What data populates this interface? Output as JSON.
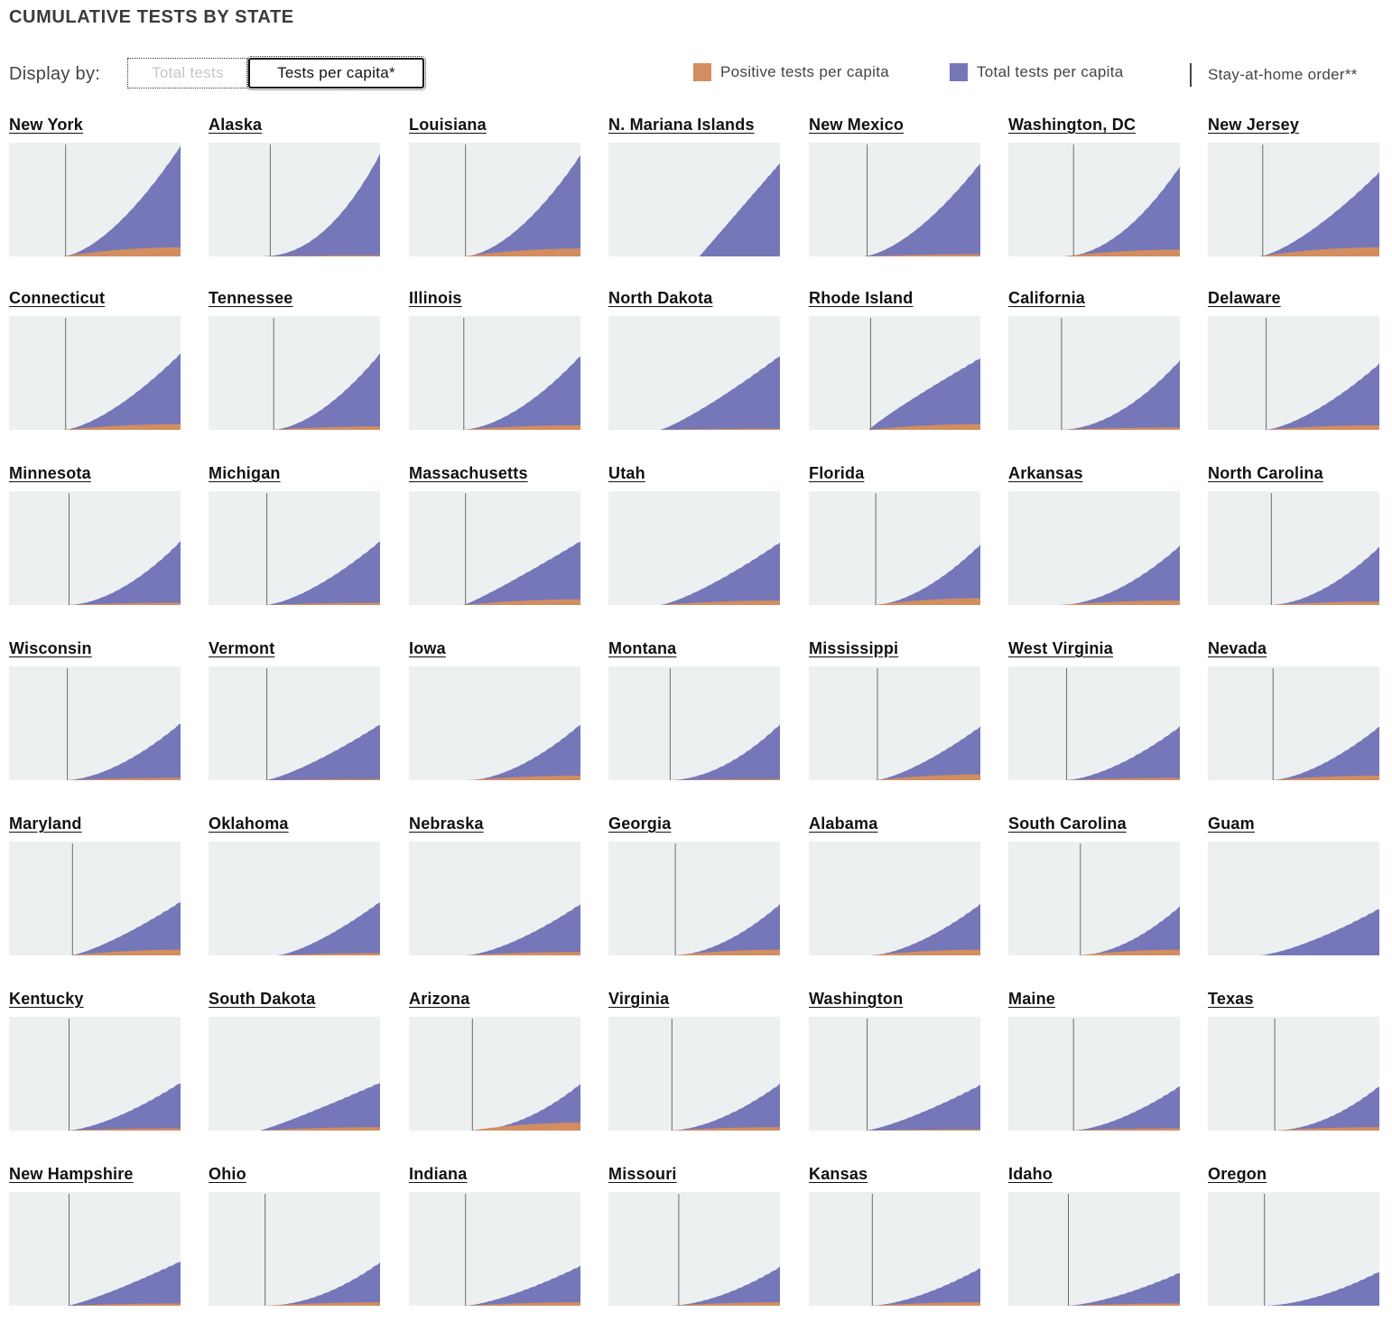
{
  "title": "CUMULATIVE TESTS BY STATE",
  "display": {
    "label": "Display by:",
    "options": [
      "Total tests",
      "Tests per capita*"
    ],
    "selected": "Tests per capita*"
  },
  "legend": {
    "positive": "Positive tests per capita",
    "total": "Total tests per capita",
    "order": "Stay-at-home order**"
  },
  "colors": {
    "positive": "#d38d5f",
    "total": "#7577b8",
    "background": "#edf0f1",
    "order_line": "#6b6b6b"
  },
  "chart_data": {
    "type": "area",
    "layout": "small-multiples",
    "columns": 7,
    "series_names": [
      "Positive tests per capita",
      "Total tests per capita"
    ],
    "states": [
      {
        "name": "New York",
        "order": 0.33,
        "start": 0.31,
        "total_end": 0.97,
        "pos_end": 0.08,
        "curve": 1.6
      },
      {
        "name": "Alaska",
        "order": 0.36,
        "start": 0.3,
        "total_end": 0.9,
        "pos_end": 0.01,
        "curve": 2.2
      },
      {
        "name": "Louisiana",
        "order": 0.33,
        "start": 0.32,
        "total_end": 0.89,
        "pos_end": 0.07,
        "curve": 1.7
      },
      {
        "name": "N. Mariana Islands",
        "order": null,
        "start": 0.53,
        "total_end": 0.82,
        "pos_end": 0.0,
        "curve": 1.0
      },
      {
        "name": "New Mexico",
        "order": 0.34,
        "start": 0.31,
        "total_end": 0.82,
        "pos_end": 0.02,
        "curve": 1.6
      },
      {
        "name": "Washington, DC",
        "order": 0.38,
        "start": 0.32,
        "total_end": 0.79,
        "pos_end": 0.06,
        "curve": 1.9
      },
      {
        "name": "New Jersey",
        "order": 0.32,
        "start": 0.3,
        "total_end": 0.74,
        "pos_end": 0.08,
        "curve": 1.4
      },
      {
        "name": "Connecticut",
        "order": 0.33,
        "start": 0.32,
        "total_end": 0.67,
        "pos_end": 0.05,
        "curve": 1.5
      },
      {
        "name": "Tennessee",
        "order": 0.38,
        "start": 0.37,
        "total_end": 0.67,
        "pos_end": 0.03,
        "curve": 1.7
      },
      {
        "name": "Illinois",
        "order": 0.32,
        "start": 0.31,
        "total_end": 0.65,
        "pos_end": 0.04,
        "curve": 1.7
      },
      {
        "name": "North Dakota",
        "order": null,
        "start": 0.3,
        "total_end": 0.65,
        "pos_end": 0.01,
        "curve": 1.2
      },
      {
        "name": "Rhode Island",
        "order": 0.36,
        "start": 0.35,
        "total_end": 0.63,
        "pos_end": 0.05,
        "curve": 0.9
      },
      {
        "name": "California",
        "order": 0.31,
        "start": 0.3,
        "total_end": 0.61,
        "pos_end": 0.02,
        "curve": 1.9
      },
      {
        "name": "Delaware",
        "order": 0.34,
        "start": 0.33,
        "total_end": 0.58,
        "pos_end": 0.04,
        "curve": 1.5
      },
      {
        "name": "Minnesota",
        "order": 0.35,
        "start": 0.34,
        "total_end": 0.56,
        "pos_end": 0.02,
        "curve": 1.8
      },
      {
        "name": "Michigan",
        "order": 0.34,
        "start": 0.33,
        "total_end": 0.56,
        "pos_end": 0.02,
        "curve": 1.5
      },
      {
        "name": "Massachusetts",
        "order": 0.33,
        "start": 0.32,
        "total_end": 0.56,
        "pos_end": 0.05,
        "curve": 1.1
      },
      {
        "name": "Utah",
        "order": null,
        "start": 0.3,
        "total_end": 0.55,
        "pos_end": 0.04,
        "curve": 1.3
      },
      {
        "name": "Florida",
        "order": 0.39,
        "start": 0.38,
        "total_end": 0.53,
        "pos_end": 0.06,
        "curve": 1.7
      },
      {
        "name": "Arkansas",
        "order": null,
        "start": 0.3,
        "total_end": 0.52,
        "pos_end": 0.04,
        "curve": 1.8
      },
      {
        "name": "North Carolina",
        "order": 0.37,
        "start": 0.36,
        "total_end": 0.51,
        "pos_end": 0.03,
        "curve": 1.8
      },
      {
        "name": "Wisconsin",
        "order": 0.34,
        "start": 0.33,
        "total_end": 0.5,
        "pos_end": 0.02,
        "curve": 1.7
      },
      {
        "name": "Vermont",
        "order": 0.34,
        "start": 0.33,
        "total_end": 0.49,
        "pos_end": 0.01,
        "curve": 1.3
      },
      {
        "name": "Iowa",
        "order": null,
        "start": 0.35,
        "total_end": 0.49,
        "pos_end": 0.04,
        "curve": 1.7
      },
      {
        "name": "Montana",
        "order": 0.36,
        "start": 0.35,
        "total_end": 0.49,
        "pos_end": 0.01,
        "curve": 1.9
      },
      {
        "name": "Mississippi",
        "order": 0.4,
        "start": 0.39,
        "total_end": 0.47,
        "pos_end": 0.05,
        "curve": 1.4
      },
      {
        "name": "West Virginia",
        "order": 0.34,
        "start": 0.33,
        "total_end": 0.47,
        "pos_end": 0.02,
        "curve": 1.6
      },
      {
        "name": "Nevada",
        "order": 0.38,
        "start": 0.37,
        "total_end": 0.47,
        "pos_end": 0.04,
        "curve": 1.6
      },
      {
        "name": "Maryland",
        "order": 0.37,
        "start": 0.36,
        "total_end": 0.47,
        "pos_end": 0.05,
        "curve": 1.3
      },
      {
        "name": "Oklahoma",
        "order": null,
        "start": 0.4,
        "total_end": 0.47,
        "pos_end": 0.02,
        "curve": 1.4
      },
      {
        "name": "Nebraska",
        "order": null,
        "start": 0.33,
        "total_end": 0.45,
        "pos_end": 0.03,
        "curve": 1.5
      },
      {
        "name": "Georgia",
        "order": 0.39,
        "start": 0.38,
        "total_end": 0.45,
        "pos_end": 0.05,
        "curve": 1.8
      },
      {
        "name": "Alabama",
        "order": null,
        "start": 0.36,
        "total_end": 0.45,
        "pos_end": 0.05,
        "curve": 1.6
      },
      {
        "name": "South Carolina",
        "order": 0.42,
        "start": 0.41,
        "total_end": 0.43,
        "pos_end": 0.05,
        "curve": 1.8
      },
      {
        "name": "Guam",
        "order": null,
        "start": 0.3,
        "total_end": 0.41,
        "pos_end": 0.0,
        "curve": 1.4
      },
      {
        "name": "Kentucky",
        "order": 0.35,
        "start": 0.34,
        "total_end": 0.42,
        "pos_end": 0.02,
        "curve": 1.5
      },
      {
        "name": "South Dakota",
        "order": null,
        "start": 0.3,
        "total_end": 0.42,
        "pos_end": 0.03,
        "curve": 1.1
      },
      {
        "name": "Arizona",
        "order": 0.37,
        "start": 0.36,
        "total_end": 0.41,
        "pos_end": 0.07,
        "curve": 1.9
      },
      {
        "name": "Virginia",
        "order": 0.37,
        "start": 0.36,
        "total_end": 0.41,
        "pos_end": 0.03,
        "curve": 1.7
      },
      {
        "name": "Washington",
        "order": 0.34,
        "start": 0.33,
        "total_end": 0.4,
        "pos_end": 0.01,
        "curve": 1.3
      },
      {
        "name": "Maine",
        "order": 0.38,
        "start": 0.37,
        "total_end": 0.39,
        "pos_end": 0.02,
        "curve": 1.6
      },
      {
        "name": "Texas",
        "order": 0.39,
        "start": 0.38,
        "total_end": 0.39,
        "pos_end": 0.03,
        "curve": 1.9
      },
      {
        "name": "New Hampshire",
        "order": 0.35,
        "start": 0.34,
        "total_end": 0.39,
        "pos_end": 0.02,
        "curve": 1.2
      },
      {
        "name": "Ohio",
        "order": 0.33,
        "start": 0.33,
        "total_end": 0.38,
        "pos_end": 0.03,
        "curve": 1.9
      },
      {
        "name": "Indiana",
        "order": 0.33,
        "start": 0.33,
        "total_end": 0.35,
        "pos_end": 0.03,
        "curve": 1.4
      },
      {
        "name": "Missouri",
        "order": 0.41,
        "start": 0.36,
        "total_end": 0.34,
        "pos_end": 0.03,
        "curve": 1.7
      },
      {
        "name": "Kansas",
        "order": 0.37,
        "start": 0.36,
        "total_end": 0.33,
        "pos_end": 0.03,
        "curve": 1.6
      },
      {
        "name": "Idaho",
        "order": 0.35,
        "start": 0.34,
        "total_end": 0.29,
        "pos_end": 0.02,
        "curve": 1.5
      },
      {
        "name": "Oregon",
        "order": 0.33,
        "start": 0.33,
        "total_end": 0.3,
        "pos_end": 0.0,
        "curve": 1.7
      }
    ]
  }
}
